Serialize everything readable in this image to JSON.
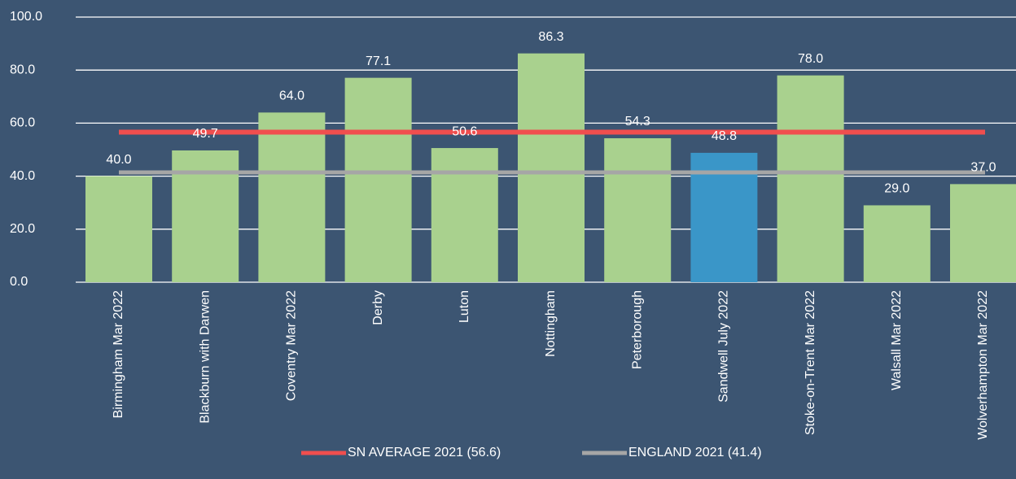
{
  "chart_data": {
    "type": "bar",
    "categories": [
      "Birmingham Mar 2022",
      "Blackburn with Darwen",
      "Coventry Mar 2022",
      "Derby",
      "Luton",
      "Nottingham",
      "Peterborough",
      "Sandwell July 2022",
      "Stoke-on-Trent Mar 2022",
      "Walsall Mar 2022",
      "Wolverhampton Mar 2022"
    ],
    "values": [
      40.0,
      49.7,
      64.0,
      77.1,
      50.6,
      86.3,
      54.3,
      48.8,
      78.0,
      29.0,
      37.0
    ],
    "value_labels": [
      "40.0",
      "49.7",
      "64.0",
      "77.1",
      "50.6",
      "86.3",
      "54.3",
      "48.8",
      "78.0",
      "29.0",
      "37.0"
    ],
    "colors": [
      "#a9d18e",
      "#a9d18e",
      "#a9d18e",
      "#a9d18e",
      "#a9d18e",
      "#a9d18e",
      "#a9d18e",
      "#3a96c8",
      "#a9d18e",
      "#a9d18e",
      "#a9d18e"
    ],
    "reference_lines": [
      {
        "name": "SN AVERAGE 2021 (56.6)",
        "value": 56.6,
        "color": "#f04e4e"
      },
      {
        "name": "ENGLAND 2021 (41.4)",
        "value": 41.4,
        "color": "#a6a6a6"
      }
    ],
    "ylim": [
      0,
      100
    ],
    "yticks": [
      {
        "value": 0,
        "label": "0.0"
      },
      {
        "value": 20,
        "label": "20.0"
      },
      {
        "value": 40,
        "label": "40.0"
      },
      {
        "value": 60,
        "label": "60.0"
      },
      {
        "value": 80,
        "label": "80.0"
      },
      {
        "value": 100,
        "label": "100.0"
      }
    ],
    "grid": true
  }
}
